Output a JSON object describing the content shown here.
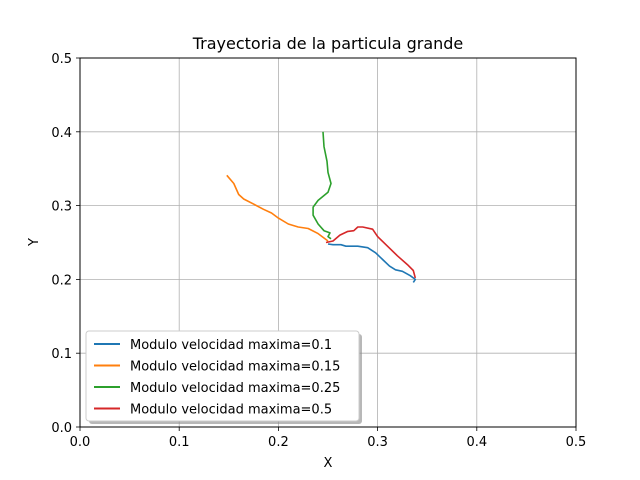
{
  "chart_data": {
    "type": "line",
    "title": "Trayectoria de la particula grande",
    "xlabel": "X",
    "ylabel": "Y",
    "xlim": [
      0.0,
      0.5
    ],
    "ylim": [
      0.0,
      0.5
    ],
    "xticks": [
      "0.0",
      "0.1",
      "0.2",
      "0.3",
      "0.4",
      "0.5"
    ],
    "yticks": [
      "0.0",
      "0.1",
      "0.2",
      "0.3",
      "0.4",
      "0.5"
    ],
    "grid": true,
    "legend_position": "lower-left",
    "series": [
      {
        "name": "Modulo velocidad maxima=0.1",
        "color": "#1f77b4",
        "points": [
          [
            0.25,
            0.248
          ],
          [
            0.255,
            0.247
          ],
          [
            0.263,
            0.247
          ],
          [
            0.268,
            0.245
          ],
          [
            0.28,
            0.245
          ],
          [
            0.29,
            0.243
          ],
          [
            0.298,
            0.236
          ],
          [
            0.305,
            0.227
          ],
          [
            0.312,
            0.218
          ],
          [
            0.318,
            0.213
          ],
          [
            0.325,
            0.211
          ],
          [
            0.333,
            0.205
          ],
          [
            0.338,
            0.2
          ],
          [
            0.336,
            0.196
          ]
        ]
      },
      {
        "name": "Modulo velocidad maxima=0.15",
        "color": "#ff7f0e",
        "points": [
          [
            0.148,
            0.341
          ],
          [
            0.155,
            0.33
          ],
          [
            0.16,
            0.315
          ],
          [
            0.165,
            0.309
          ],
          [
            0.175,
            0.302
          ],
          [
            0.185,
            0.295
          ],
          [
            0.193,
            0.29
          ],
          [
            0.2,
            0.283
          ],
          [
            0.21,
            0.275
          ],
          [
            0.22,
            0.271
          ],
          [
            0.23,
            0.269
          ],
          [
            0.24,
            0.262
          ],
          [
            0.25,
            0.252
          ]
        ]
      },
      {
        "name": "Modulo velocidad maxima=0.25",
        "color": "#2ca02c",
        "points": [
          [
            0.245,
            0.4
          ],
          [
            0.246,
            0.38
          ],
          [
            0.249,
            0.36
          ],
          [
            0.25,
            0.345
          ],
          [
            0.253,
            0.33
          ],
          [
            0.25,
            0.318
          ],
          [
            0.24,
            0.307
          ],
          [
            0.235,
            0.298
          ],
          [
            0.235,
            0.287
          ],
          [
            0.24,
            0.275
          ],
          [
            0.246,
            0.266
          ],
          [
            0.252,
            0.263
          ],
          [
            0.25,
            0.258
          ],
          [
            0.253,
            0.255
          ]
        ]
      },
      {
        "name": "Modulo velocidad maxima=0.5",
        "color": "#d62728",
        "points": [
          [
            0.248,
            0.25
          ],
          [
            0.255,
            0.252
          ],
          [
            0.262,
            0.26
          ],
          [
            0.27,
            0.265
          ],
          [
            0.276,
            0.266
          ],
          [
            0.28,
            0.271
          ],
          [
            0.285,
            0.271
          ],
          [
            0.295,
            0.268
          ],
          [
            0.3,
            0.258
          ],
          [
            0.31,
            0.245
          ],
          [
            0.32,
            0.232
          ],
          [
            0.33,
            0.22
          ],
          [
            0.336,
            0.212
          ],
          [
            0.338,
            0.202
          ]
        ]
      }
    ]
  }
}
